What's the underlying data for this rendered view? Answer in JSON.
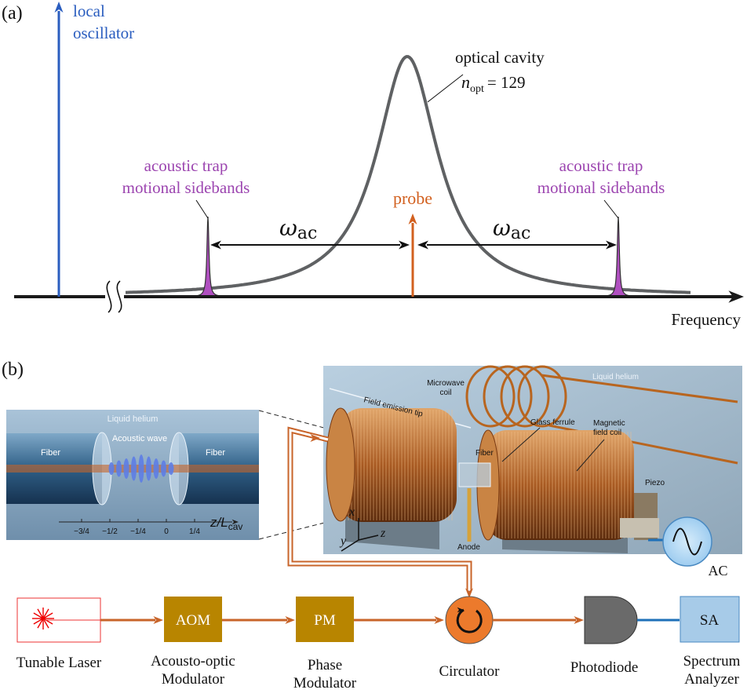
{
  "panel_a": {
    "label": "(a)",
    "local_oscillator": [
      "local",
      "oscillator"
    ],
    "cavity": {
      "name": "optical cavity",
      "symbol": "n",
      "sub": "opt",
      "value": "= 129"
    },
    "sideband_left": [
      "acoustic trap",
      "motional sidebands"
    ],
    "sideband_right": [
      "acoustic trap",
      "motional sidebands"
    ],
    "probe": "probe",
    "spacing_left": {
      "symbol": "ω",
      "sub": "ac"
    },
    "spacing_right": {
      "symbol": "ω",
      "sub": "ac"
    },
    "axis_label": "Frequency"
  },
  "panel_b": {
    "label": "(b)",
    "inset": {
      "medium": "Liquid helium",
      "fiber_left": "Fiber",
      "wave": "Acoustic wave",
      "fiber_right": "Fiber",
      "ticks": [
        "−3/4",
        "−1/2",
        "−1/4",
        "0",
        "1/4"
      ],
      "axis": {
        "z": "z/",
        "L": "L",
        "sub": "cav"
      }
    },
    "setup": {
      "medium": "Liquid helium",
      "microwave_coil": [
        "Microwave",
        "coil"
      ],
      "tip": "Field emission tip",
      "ferrule": "Glass ferrule",
      "fiber": "Fiber",
      "magnet": [
        "Magnetic",
        "field coil"
      ],
      "piezo": "Piezo",
      "anode": "Anode",
      "axes": [
        "x",
        "y",
        "z"
      ]
    },
    "ac": "AC",
    "laser": {
      "label": [
        "Tunable Laser"
      ]
    },
    "aom": {
      "box": "AOM",
      "label": [
        "Acousto-optic",
        "Modulator"
      ]
    },
    "pm": {
      "box": "PM",
      "label": [
        "Phase",
        "Modulator"
      ]
    },
    "circulator": {
      "label": [
        "Circulator"
      ]
    },
    "photodiode": {
      "label": [
        "Photodiode"
      ]
    },
    "sa": {
      "box": "SA",
      "label": [
        "Spectrum",
        "Analyzer"
      ]
    }
  }
}
